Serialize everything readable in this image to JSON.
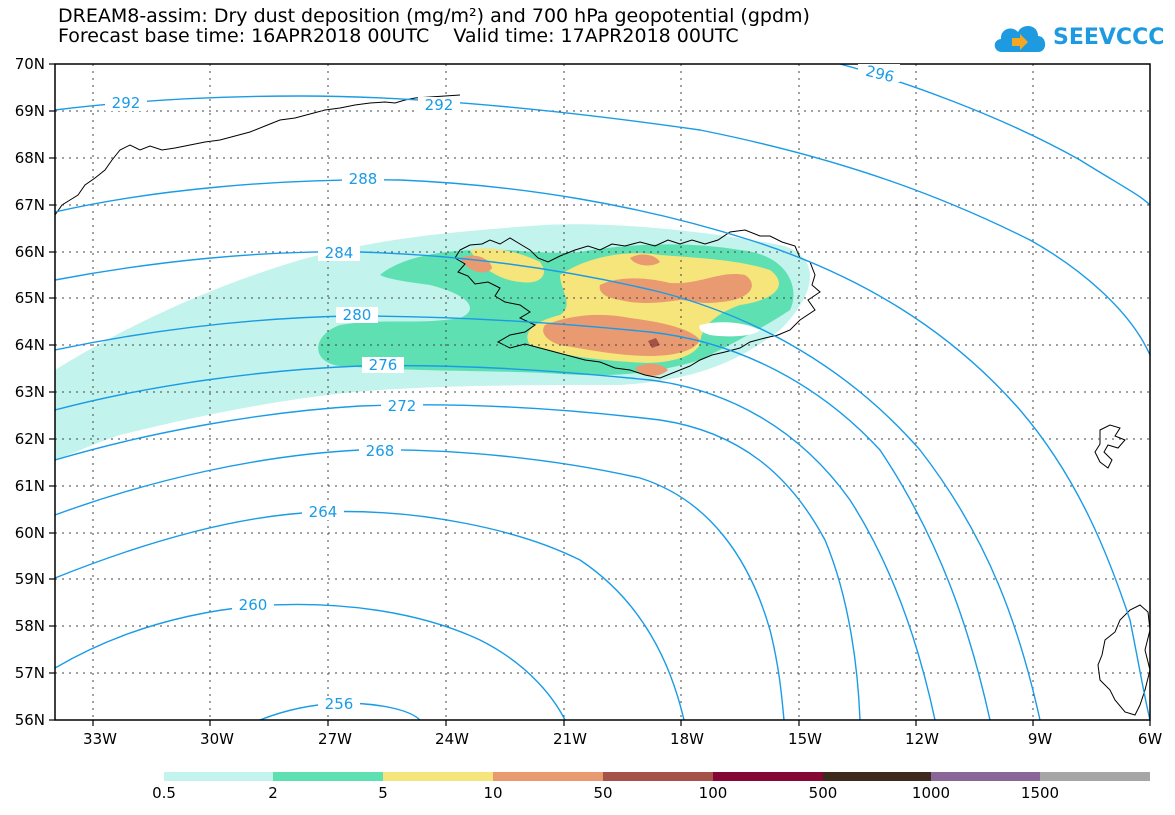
{
  "header": {
    "title_line1": "DREAM8-assim: Dry dust deposition (mg/m²) and 700 hPa geopotential (gpdm)",
    "title_line2": "Forecast base time: 16APR2018 00UTC    Valid time: 17APR2018 00UTC",
    "logo_text": "SEEVCCC"
  },
  "map": {
    "lat_labels": [
      "70N",
      "69N",
      "68N",
      "67N",
      "66N",
      "65N",
      "64N",
      "63N",
      "62N",
      "61N",
      "60N",
      "59N",
      "58N",
      "57N",
      "56N"
    ],
    "lon_labels": [
      "33W",
      "30W",
      "27W",
      "24W",
      "21W",
      "18W",
      "15W",
      "12W",
      "9W",
      "6W"
    ],
    "contour_labels": [
      "296",
      "292",
      "292",
      "288",
      "284",
      "280",
      "276",
      "272",
      "268",
      "264",
      "260",
      "256"
    ],
    "contour_color": "#1a9be6",
    "coast_color": "#000000"
  },
  "legend": {
    "labels": [
      "0.5",
      "2",
      "5",
      "10",
      "50",
      "100",
      "500",
      "1000",
      "1500"
    ],
    "colors": [
      "#c2f3ec",
      "#5ee0b3",
      "#f5e57a",
      "#ea9a70",
      "#a55249",
      "#840734",
      "#3d2a1d",
      "#8a6598",
      "#a6a6a6"
    ]
  }
}
